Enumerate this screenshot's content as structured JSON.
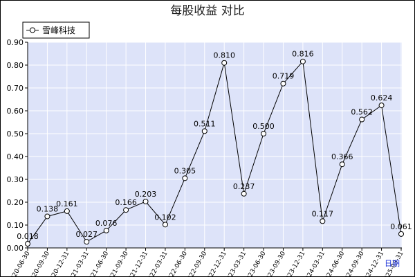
{
  "chart_data": {
    "type": "line",
    "title": "每股收益  对比",
    "x_axis_suffix": "日期",
    "ylim": [
      0.0,
      0.9
    ],
    "y_ticks": [
      "0.00",
      "0.10",
      "0.20",
      "0.30",
      "0.40",
      "0.50",
      "0.60",
      "0.70",
      "0.80",
      "0.90"
    ],
    "grid": true,
    "legend_position": "top-left",
    "colors": {
      "plot_bg": "#dde3f9",
      "grid": "#ffffff",
      "line": "#000000",
      "marker_fill": "#ffffff"
    },
    "categories": [
      "2020-06-30",
      "2020-09-30",
      "2020-12-31",
      "2021-03-31",
      "2021-06-30",
      "2021-09-30",
      "2021-12-31",
      "2022-03-31",
      "2022-06-30",
      "2022-09-30",
      "2022-12-31",
      "2023-03-31",
      "2023-06-30",
      "2023-09-30",
      "2023-12-31",
      "2024-03-31",
      "2024-06-30",
      "2024-09-30",
      "2024-12-31",
      "2025-03-31"
    ],
    "series": [
      {
        "name": "雪峰科技",
        "values": [
          0.018,
          0.138,
          0.161,
          0.027,
          0.076,
          0.166,
          0.203,
          0.102,
          0.305,
          0.511,
          0.81,
          0.237,
          0.5,
          0.719,
          0.816,
          0.117,
          0.366,
          0.562,
          0.624,
          0.061
        ],
        "labels": [
          "0.018",
          "0.138",
          "0.161",
          "0.027",
          "0.076",
          "0.166",
          "0.203",
          "0.102",
          "0.305",
          "0.511",
          "0.810",
          "0.237",
          "0.500",
          "0.719",
          "0.816",
          "0.117",
          "0.366",
          "0.562",
          "0.624",
          "0.061"
        ]
      }
    ]
  }
}
